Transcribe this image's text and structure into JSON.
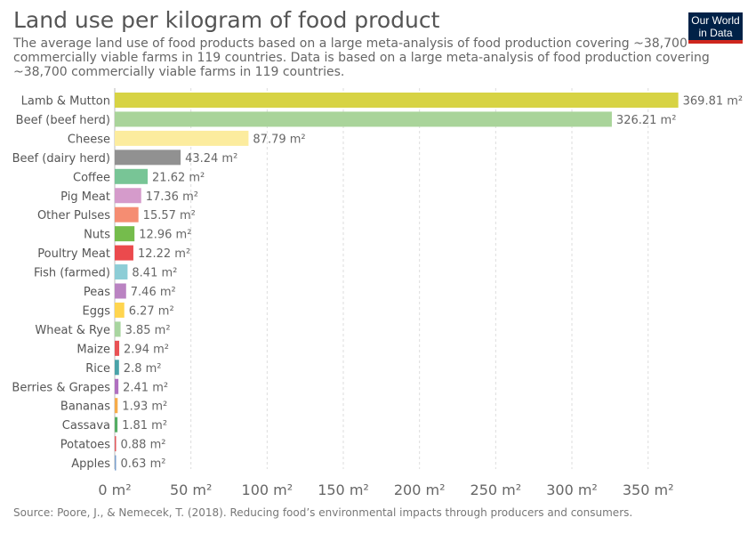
{
  "header": {
    "title": "Land use per kilogram of food product",
    "subtitle": "The average land use of food products based on a large meta-analysis of food production covering ~38,700 commercially viable farms in 119 countries. Data is based on a large meta-analysis of food production covering ~38,700 commercially viable farms in 119 countries."
  },
  "logo": {
    "line1": "Our World",
    "line2": "in Data"
  },
  "source": "Source: Poore, J., & Nemecek, T. (2018). Reducing food’s environmental impacts through producers and consumers.",
  "chart_data": {
    "type": "bar",
    "orientation": "horizontal",
    "unit": "m²",
    "categories": [
      "Lamb & Mutton",
      "Beef (beef herd)",
      "Cheese",
      "Beef (dairy herd)",
      "Coffee",
      "Pig Meat",
      "Other Pulses",
      "Nuts",
      "Poultry Meat",
      "Fish (farmed)",
      "Peas",
      "Eggs",
      "Wheat & Rye",
      "Maize",
      "Rice",
      "Berries & Grapes",
      "Bananas",
      "Cassava",
      "Potatoes",
      "Apples"
    ],
    "values": [
      369.81,
      326.21,
      87.79,
      43.24,
      21.62,
      17.36,
      15.57,
      12.96,
      12.22,
      8.41,
      7.46,
      6.27,
      3.85,
      2.94,
      2.8,
      2.41,
      1.93,
      1.81,
      0.88,
      0.63
    ],
    "value_labels": [
      "369.81 m²",
      "326.21 m²",
      "87.79 m²",
      "43.24 m²",
      "21.62 m²",
      "17.36 m²",
      "15.57 m²",
      "12.96 m²",
      "12.22 m²",
      "8.41 m²",
      "7.46 m²",
      "6.27 m²",
      "3.85 m²",
      "2.94 m²",
      "2.8 m²",
      "2.41 m²",
      "1.93 m²",
      "1.81 m²",
      "0.88 m²",
      "0.63 m²"
    ],
    "colors": [
      "#d7d344",
      "#a9d49a",
      "#fcec9e",
      "#919191",
      "#78c596",
      "#d59bcb",
      "#f58d72",
      "#75bc4c",
      "#eb4a4d",
      "#8dcdd6",
      "#ba83c2",
      "#ffd54f",
      "#a8d5a0",
      "#e95255",
      "#4aa3a9",
      "#b070c0",
      "#f6ac4a",
      "#55ad64",
      "#e2585c",
      "#7a9fcd"
    ],
    "xlim": [
      0,
      370
    ],
    "xticks": [
      0,
      50,
      100,
      150,
      200,
      250,
      300,
      350
    ],
    "xtick_labels": [
      "0 m²",
      "50 m²",
      "100 m²",
      "150 m²",
      "200 m²",
      "250 m²",
      "300 m²",
      "350 m²"
    ],
    "grid": "vertical dashed",
    "legend": "none"
  }
}
